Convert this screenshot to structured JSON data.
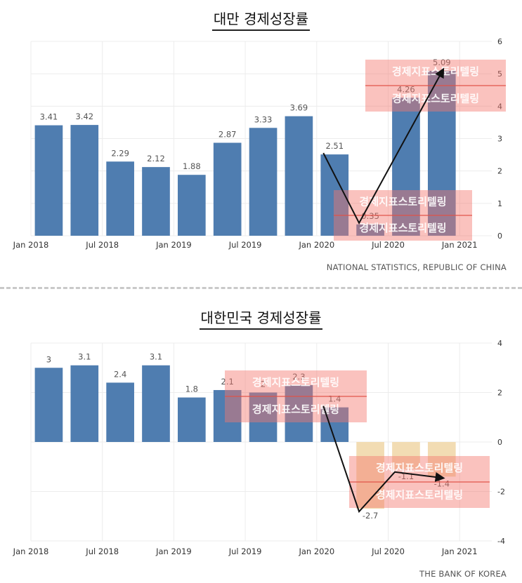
{
  "chart_data": [
    {
      "type": "bar",
      "title": "대만 경제성장률",
      "source": "NATIONAL STATISTICS, REPUBLIC OF CHINA",
      "categories": [
        "2018 Q1",
        "2018 Q2",
        "2018 Q3",
        "2018 Q4",
        "2019 Q1",
        "2019 Q2",
        "2019 Q3",
        "2019 Q4",
        "2020 Q1",
        "2020 Q2",
        "2020 Q3",
        "2020 Q4"
      ],
      "values": [
        3.41,
        3.42,
        2.29,
        2.12,
        1.88,
        2.87,
        3.33,
        3.69,
        2.51,
        0.35,
        4.26,
        5.09
      ],
      "value_labels": [
        "3.41",
        "3.42",
        "2.29",
        "2.12",
        "1.88",
        "2.87",
        "3.33",
        "3.69",
        "2.51",
        "0.35",
        "4.26",
        "5.09"
      ],
      "x_tick_labels": [
        "Jan 2018",
        "Jul 2018",
        "Jan 2019",
        "Jul 2019",
        "Jan 2020",
        "Jul 2020",
        "Jan 2021"
      ],
      "y_ticks": [
        0,
        1,
        2,
        3,
        4,
        5,
        6
      ],
      "ylim": [
        0,
        6
      ],
      "grid": true,
      "bar_color": "#4f7db0",
      "trend_arrow_through": [
        "2020 Q1",
        "2020 Q2",
        "2020 Q4"
      ],
      "watermark": "경제지표스토리텔링"
    },
    {
      "type": "bar",
      "title": "대한민국 경제성장률",
      "source": "THE BANK OF KOREA",
      "categories": [
        "2018 Q1",
        "2018 Q2",
        "2018 Q3",
        "2018 Q4",
        "2019 Q1",
        "2019 Q2",
        "2019 Q3",
        "2019 Q4",
        "2020 Q1",
        "2020 Q2",
        "2020 Q3",
        "2020 Q4"
      ],
      "values": [
        3,
        3.1,
        2.4,
        3.1,
        1.8,
        2.1,
        2,
        2.3,
        1.4,
        -2.7,
        -1.1,
        -1.4
      ],
      "value_labels": [
        "3",
        "3.1",
        "2.4",
        "3.1",
        "1.8",
        "2.1",
        "2",
        "2.3",
        "1.4",
        "-2.7",
        "-1.1",
        "-1.4"
      ],
      "x_tick_labels": [
        "Jan 2018",
        "Jul 2018",
        "Jan 2019",
        "Jul 2019",
        "Jan 2020",
        "Jul 2020",
        "Jan 2021"
      ],
      "y_ticks": [
        -4,
        -2,
        0,
        2,
        4
      ],
      "ylim": [
        -4,
        4
      ],
      "grid": true,
      "bar_color": "#4f7db0",
      "negative_bar_color": "#f2dcb3",
      "trend_arrow_through": [
        "2020 Q1",
        "2020 Q2",
        "2020 Q3",
        "2020 Q4"
      ],
      "watermark": "경제지표스토리텔링"
    }
  ]
}
